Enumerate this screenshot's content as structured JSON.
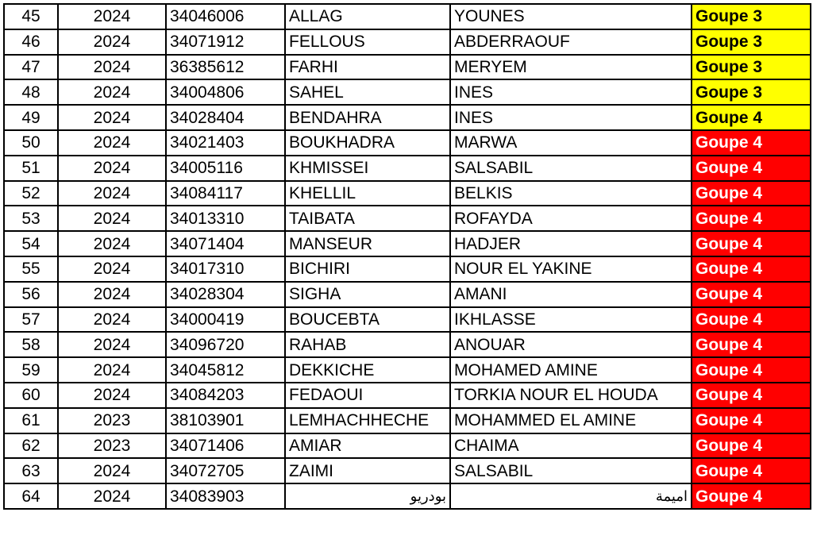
{
  "colors": {
    "yellow": "#ffff00",
    "red": "#ff0000"
  },
  "rows": [
    {
      "n": "45",
      "year": "2024",
      "id": "34046006",
      "last": "ALLAG",
      "first": "YOUNES",
      "group": "Goupe 3",
      "color": "yellow"
    },
    {
      "n": "46",
      "year": "2024",
      "id": "34071912",
      "last": "FELLOUS",
      "first": "ABDERRAOUF",
      "group": "Goupe 3",
      "color": "yellow"
    },
    {
      "n": "47",
      "year": "2024",
      "id": "36385612",
      "last": "FARHI",
      "first": "MERYEM",
      "group": "Goupe 3",
      "color": "yellow"
    },
    {
      "n": "48",
      "year": "2024",
      "id": "34004806",
      "last": "SAHEL",
      "first": "INES",
      "group": "Goupe 3",
      "color": "yellow"
    },
    {
      "n": "49",
      "year": "2024",
      "id": "34028404",
      "last": "BENDAHRA",
      "first": "INES",
      "group": "Goupe 4",
      "color": "yellow"
    },
    {
      "n": "50",
      "year": "2024",
      "id": "34021403",
      "last": "BOUKHADRA",
      "first": "MARWA",
      "group": "Goupe 4",
      "color": "red"
    },
    {
      "n": "51",
      "year": "2024",
      "id": "34005116",
      "last": "KHMISSEI",
      "first": "SALSABIL",
      "group": "Goupe 4",
      "color": "red"
    },
    {
      "n": "52",
      "year": "2024",
      "id": "34084117",
      "last": "KHELLIL",
      "first": "BELKIS",
      "group": "Goupe 4",
      "color": "red"
    },
    {
      "n": "53",
      "year": "2024",
      "id": "34013310",
      "last": "TAIBATA",
      "first": "ROFAYDA",
      "group": "Goupe 4",
      "color": "red"
    },
    {
      "n": "54",
      "year": "2024",
      "id": "34071404",
      "last": "MANSEUR",
      "first": "HADJER",
      "group": "Goupe 4",
      "color": "red"
    },
    {
      "n": "55",
      "year": "2024",
      "id": "34017310",
      "last": "BICHIRI",
      "first": "NOUR EL YAKINE",
      "group": "Goupe 4",
      "color": "red"
    },
    {
      "n": "56",
      "year": "2024",
      "id": "34028304",
      "last": "SIGHA",
      "first": "AMANI",
      "group": "Goupe 4",
      "color": "red"
    },
    {
      "n": "57",
      "year": "2024",
      "id": "34000419",
      "last": "BOUCEBTA",
      "first": "IKHLASSE",
      "group": "Goupe 4",
      "color": "red"
    },
    {
      "n": "58",
      "year": "2024",
      "id": "34096720",
      "last": "RAHAB",
      "first": "ANOUAR",
      "group": "Goupe 4",
      "color": "red"
    },
    {
      "n": "59",
      "year": "2024",
      "id": "34045812",
      "last": "DEKKICHE",
      "first": "MOHAMED AMINE",
      "group": "Goupe 4",
      "color": "red"
    },
    {
      "n": "60",
      "year": "2024",
      "id": "34084203",
      "last": "FEDAOUI",
      "first": "TORKIA NOUR EL HOUDA",
      "group": "Goupe 4",
      "color": "red"
    },
    {
      "n": "61",
      "year": "2023",
      "id": "38103901",
      "last": "LEMHACHHECHE",
      "first": "MOHAMMED EL AMINE",
      "group": "Goupe 4",
      "color": "red"
    },
    {
      "n": "62",
      "year": "2023",
      "id": "34071406",
      "last": "AMIAR",
      "first": "CHAIMA",
      "group": "Goupe 4",
      "color": "red"
    },
    {
      "n": "63",
      "year": "2024",
      "id": "34072705",
      "last": "ZAIMI",
      "first": "SALSABIL",
      "group": "Goupe 4",
      "color": "red"
    },
    {
      "n": "64",
      "year": "2024",
      "id": "34083903",
      "last": "بودريو",
      "first": "اميمة",
      "group": "Goupe 4",
      "color": "red",
      "rtl": true
    }
  ]
}
